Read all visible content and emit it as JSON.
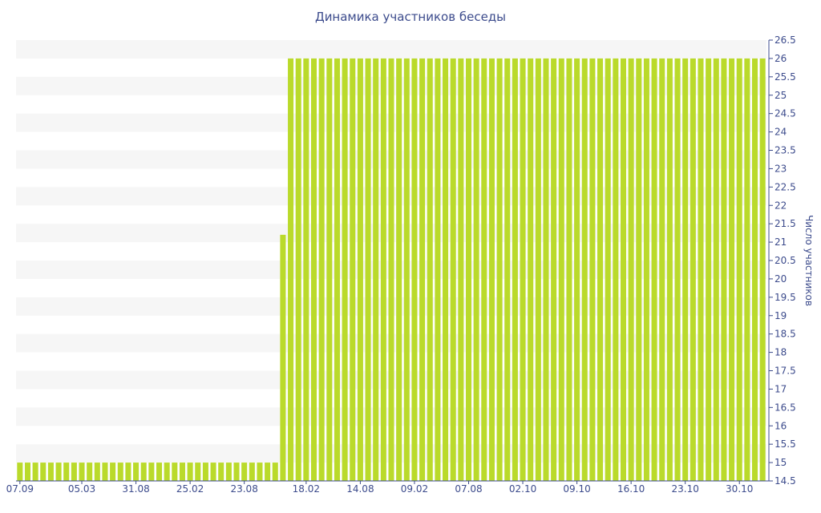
{
  "chart_data": {
    "type": "bar",
    "title": "Динамика участников беседы",
    "ylabel": "Число участников",
    "xlabel": "",
    "ylim": [
      14.5,
      26.5
    ],
    "yticks": [
      14.5,
      15,
      15.5,
      16,
      16.5,
      17,
      17.5,
      18,
      18.5,
      19,
      19.5,
      20,
      20.5,
      21,
      21.5,
      22,
      22.5,
      23,
      23.5,
      24,
      24.5,
      25,
      25.5,
      26,
      26.5
    ],
    "yaxis_position": "right",
    "grid": "alternating horizontal bands",
    "x_tick_labels": [
      {
        "index": 0,
        "label": "07.09"
      },
      {
        "index": 8,
        "label": "05.03"
      },
      {
        "index": 15,
        "label": "31.08"
      },
      {
        "index": 22,
        "label": "25.02"
      },
      {
        "index": 29,
        "label": "23.08"
      },
      {
        "index": 37,
        "label": "18.02"
      },
      {
        "index": 44,
        "label": "14.08"
      },
      {
        "index": 51,
        "label": "09.02"
      },
      {
        "index": 58,
        "label": "07.08"
      },
      {
        "index": 65,
        "label": "02.10"
      },
      {
        "index": 72,
        "label": "09.10"
      },
      {
        "index": 79,
        "label": "16.10"
      },
      {
        "index": 86,
        "label": "23.10"
      },
      {
        "index": 93,
        "label": "30.10"
      }
    ],
    "values": [
      15,
      15,
      15,
      15,
      15,
      15,
      15,
      15,
      15,
      15,
      15,
      15,
      15,
      15,
      15,
      15,
      15,
      15,
      15,
      15,
      15,
      15,
      15,
      15,
      15,
      15,
      15,
      15,
      15,
      15,
      15,
      15,
      15,
      15,
      21.2,
      26,
      26,
      26,
      26,
      26,
      26,
      26,
      26,
      26,
      26,
      26,
      26,
      26,
      26,
      26,
      26,
      26,
      26,
      26,
      26,
      26,
      26,
      26,
      26,
      26,
      26,
      26,
      26,
      26,
      26,
      26,
      26,
      26,
      26,
      26,
      26,
      26,
      26,
      26,
      26,
      26,
      26,
      26,
      26,
      26,
      26,
      26,
      26,
      26,
      26,
      26,
      26,
      26,
      26,
      26,
      26,
      26,
      26,
      26,
      26,
      26,
      26
    ],
    "colors": {
      "bar": "#bada2b",
      "band": "#f6f6f6",
      "text": "#3c4b8c",
      "axis": "#3c4b8c"
    }
  }
}
